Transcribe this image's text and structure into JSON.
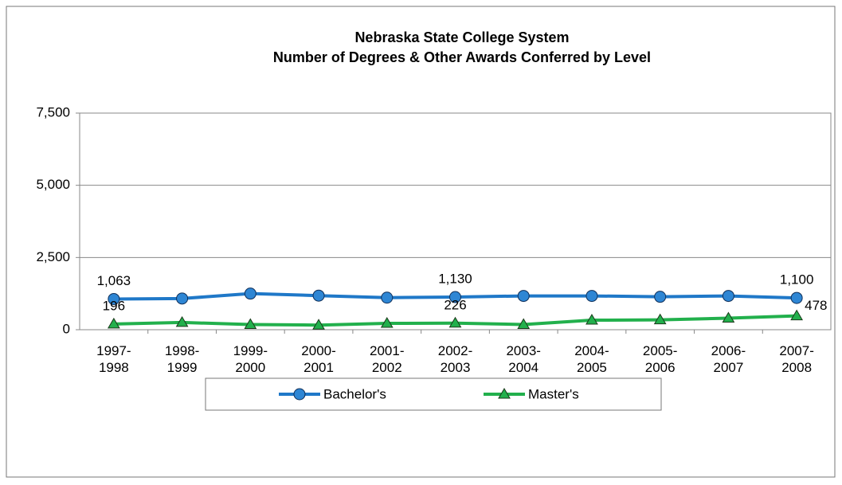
{
  "chart_data": {
    "type": "line",
    "title": "Nebraska State College System",
    "subtitle": "Number of Degrees & Other Awards Conferred  by Level",
    "categories": [
      "1997-\n1998",
      "1998-\n1999",
      "1999-\n2000",
      "2000-\n2001",
      "2001-\n2002",
      "2002-\n2003",
      "2003-\n2004",
      "2004-\n2005",
      "2005-\n2006",
      "2006-\n2007",
      "2007-\n2008"
    ],
    "series": [
      {
        "name": "Bachelor's",
        "color": "#1f78c8",
        "marker": "circle",
        "values": [
          1063,
          1080,
          1250,
          1180,
          1110,
          1130,
          1170,
          1170,
          1140,
          1170,
          1100
        ],
        "value_labels": [
          "1,063",
          null,
          null,
          null,
          null,
          "1,130",
          null,
          null,
          null,
          null,
          "1,100"
        ]
      },
      {
        "name": "Master's",
        "color": "#22b04c",
        "marker": "triangle",
        "values": [
          196,
          250,
          180,
          160,
          220,
          226,
          180,
          330,
          340,
          400,
          478
        ],
        "value_labels": [
          "196",
          null,
          null,
          null,
          null,
          "226",
          null,
          null,
          null,
          null,
          "478"
        ]
      }
    ],
    "ylim": [
      0,
      7500
    ],
    "yticks": [
      0,
      {
        "value": 2500,
        "label": "2,500"
      },
      {
        "value": 5000,
        "label": "5,000"
      },
      {
        "value": 7500,
        "label": "7,500"
      }
    ],
    "grid": true,
    "legend": "bottom"
  }
}
